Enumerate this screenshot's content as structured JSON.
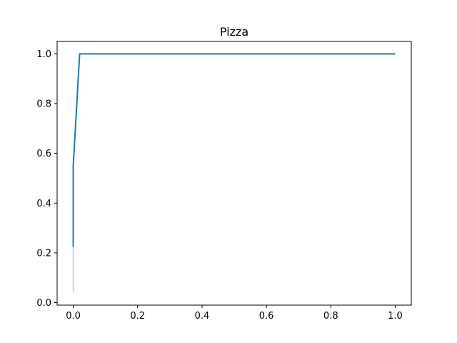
{
  "chart_data": {
    "type": "line",
    "title": "Pizza",
    "xlabel": "",
    "ylabel": "",
    "xlim": [
      -0.05,
      1.05
    ],
    "ylim": [
      -0.01,
      1.05
    ],
    "xticks": [
      0.0,
      0.2,
      0.4,
      0.6,
      0.8,
      1.0
    ],
    "xtick_labels": [
      "0.0",
      "0.2",
      "0.4",
      "0.6",
      "0.8",
      "1.0"
    ],
    "yticks": [
      0.0,
      0.2,
      0.4,
      0.6,
      0.8,
      1.0
    ],
    "ytick_labels": [
      "0.0",
      "0.2",
      "0.4",
      "0.6",
      "0.8",
      "1.0"
    ],
    "grid": false,
    "series": [
      {
        "color": "#1f77b4",
        "x": [
          0.0,
          0.0,
          0.02,
          1.0
        ],
        "y": [
          0.225,
          0.55,
          1.0,
          1.0
        ]
      }
    ],
    "band": {
      "color": "#aec7e8",
      "x": [
        0.0,
        0.0
      ],
      "y": [
        0.045,
        0.225
      ]
    }
  }
}
